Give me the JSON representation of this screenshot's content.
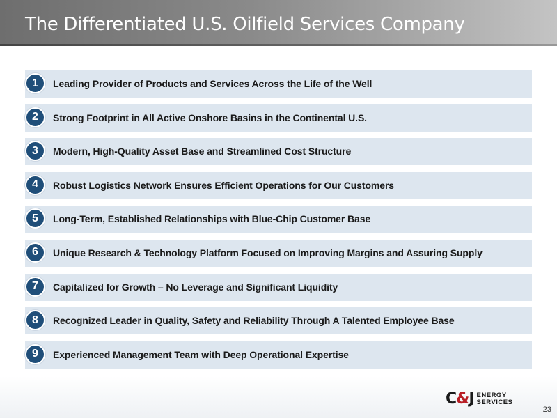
{
  "slide": {
    "title": "The Differentiated U.S. Oilfield Services Company",
    "page_number": "23"
  },
  "items": [
    {
      "number": "1",
      "text": "Leading Provider of Products and Services Across the Life of the Well"
    },
    {
      "number": "2",
      "text": "Strong Footprint in All Active Onshore Basins in the Continental U.S."
    },
    {
      "number": "3",
      "text": "Modern, High-Quality Asset Base and Streamlined Cost Structure"
    },
    {
      "number": "4",
      "text": "Robust Logistics Network Ensures Efficient Operations for Our Customers"
    },
    {
      "number": "5",
      "text": "Long-Term, Established Relationships with Blue-Chip Customer Base"
    },
    {
      "number": "6",
      "text": "Unique Research & Technology Platform Focused on Improving Margins and Assuring Supply"
    },
    {
      "number": "7",
      "text": "Capitalized for Growth – No Leverage and Significant Liquidity"
    },
    {
      "number": "8",
      "text": "Recognized Leader in Quality, Safety and Reliability Through A Talented Employee Base"
    },
    {
      "number": "9",
      "text": "Experienced Management Team with Deep Operational Expertise"
    }
  ],
  "logo": {
    "brand_left": "C",
    "brand_amp": "&",
    "brand_right": "J",
    "line1": "ENERGY",
    "line2": "SERVICES"
  },
  "colors": {
    "badge": "#1f4e79",
    "row_background": "#dde6ef",
    "title_bar": "#7a7a7a",
    "logo_accent": "#b81e25"
  }
}
